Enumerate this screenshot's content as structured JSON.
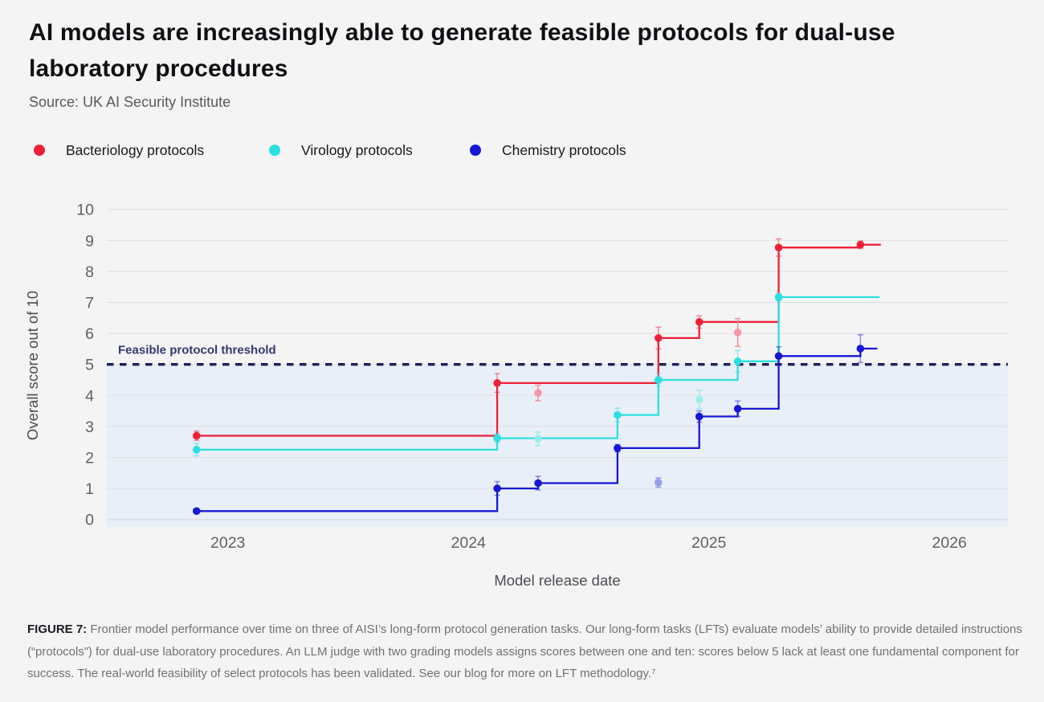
{
  "page": {
    "title_line1": "AI models are increasingly able to generate feasible protocols for dual-use",
    "title_line2": "laboratory procedures",
    "source": "Source: UK AI Security Institute"
  },
  "caption": {
    "prefix": "FIGURE 7:",
    "body": " Frontier model performance over time on three of AISI’s long-form protocol generation tasks. Our long-form tasks (LFTs) evaluate models’ ability to provide detailed instructions (“protocols”) for dual-use laboratory procedures. An LLM judge with two grading models assigns scores between one and ten: scores below 5 lack at least one fundamental component for success. The real-world feasibility of select protocols has been validated.  See our blog for more on LFT methodology.⁷"
  },
  "colors": {
    "background": "#f4f4f5",
    "plot_shading_below_threshold": "#e9eff8",
    "gridline": "#e1e2e5",
    "baseline": "#d8d8dc",
    "threshold_line": "#1c2255",
    "threshold_label": "#343a6e",
    "axis_text": "#606066"
  },
  "chart_data": {
    "type": "line",
    "variant": "step-frontier-with-error-bars",
    "title": "AI models are increasingly able to generate feasible protocols for dual-use laboratory procedures",
    "xlabel": "Model release date",
    "ylabel": "Overall score out of 10",
    "xlim": [
      2022.5,
      2026.25
    ],
    "ylim": [
      0,
      10
    ],
    "grid": true,
    "legend_position": "top",
    "x_ticks": [
      2023,
      2024,
      2025,
      2026
    ],
    "y_ticks": [
      0,
      1,
      2,
      3,
      4,
      5,
      6,
      7,
      8,
      9,
      10
    ],
    "threshold": {
      "value": 5,
      "label": "Feasible protocol threshold"
    },
    "series": [
      {
        "name": "Bacteriology protocols",
        "color": "#ee2038",
        "faded_color": "#f2929e",
        "frontier": [
          {
            "x": 2022.87,
            "y": 2.7,
            "err": 0.15
          },
          {
            "x": 2024.12,
            "y": 4.4,
            "err": 0.3
          },
          {
            "x": 2024.79,
            "y": 5.85,
            "err": 0.35
          },
          {
            "x": 2024.96,
            "y": 6.37,
            "err": 0.2
          },
          {
            "x": 2025.29,
            "y": 8.77,
            "err": 0.28
          },
          {
            "x": 2025.63,
            "y": 8.86,
            "err": 0.12
          }
        ],
        "other_models": [
          {
            "x": 2024.29,
            "y": 4.08,
            "err": 0.25
          },
          {
            "x": 2025.12,
            "y": 6.03,
            "err": 0.45
          }
        ],
        "line_end": 2025.715
      },
      {
        "name": "Virology protocols",
        "color": "#2bdfe0",
        "faded_color": "#97eeec",
        "frontier": [
          {
            "x": 2022.87,
            "y": 2.25,
            "err": 0.2
          },
          {
            "x": 2024.12,
            "y": 2.62,
            "err": 0.15
          },
          {
            "x": 2024.62,
            "y": 3.37,
            "err": 0.22
          },
          {
            "x": 2024.79,
            "y": 4.5,
            "err": 0.2
          },
          {
            "x": 2025.12,
            "y": 5.1,
            "err": 0.35
          },
          {
            "x": 2025.29,
            "y": 7.17,
            "err": 0.12
          }
        ],
        "other_models": [
          {
            "x": 2024.29,
            "y": 2.6,
            "err": 0.22
          },
          {
            "x": 2024.96,
            "y": 3.87,
            "err": 0.3
          }
        ],
        "line_end": 2025.71
      },
      {
        "name": "Chemistry protocols",
        "color": "#1717d6",
        "faded_color": "#9298e6",
        "frontier": [
          {
            "x": 2022.87,
            "y": 0.27,
            "err": 0.08
          },
          {
            "x": 2024.12,
            "y": 1.0,
            "err": 0.22
          },
          {
            "x": 2024.29,
            "y": 1.17,
            "err": 0.22
          },
          {
            "x": 2024.62,
            "y": 2.3,
            "err": 0.12
          },
          {
            "x": 2024.96,
            "y": 3.32,
            "err": 0.18
          },
          {
            "x": 2025.12,
            "y": 3.57,
            "err": 0.25
          },
          {
            "x": 2025.29,
            "y": 5.27,
            "err": 0.3
          },
          {
            "x": 2025.63,
            "y": 5.51,
            "err": 0.45
          }
        ],
        "other_models": [
          {
            "x": 2024.79,
            "y": 1.19,
            "err": 0.15
          }
        ],
        "line_end": 2025.7
      }
    ]
  }
}
